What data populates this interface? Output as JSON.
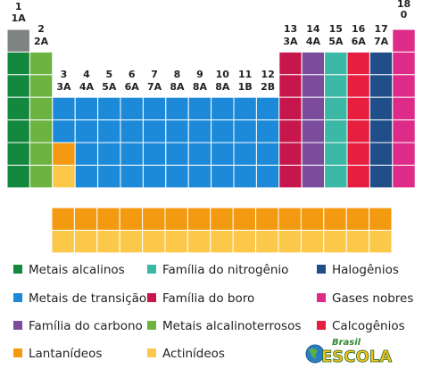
{
  "groups": [
    {
      "number": "1",
      "label": "1A"
    },
    {
      "number": "2",
      "label": "2A"
    },
    {
      "number": "3",
      "label": "3A"
    },
    {
      "number": "4",
      "label": "4A"
    },
    {
      "number": "5",
      "label": "5A"
    },
    {
      "number": "6",
      "label": "6A"
    },
    {
      "number": "7",
      "label": "7A"
    },
    {
      "number": "8",
      "label": "8A"
    },
    {
      "number": "9",
      "label": "8A"
    },
    {
      "number": "10",
      "label": "8A"
    },
    {
      "number": "11",
      "label": "1B"
    },
    {
      "number": "12",
      "label": "2B"
    },
    {
      "number": "13",
      "label": "3A"
    },
    {
      "number": "14",
      "label": "4A"
    },
    {
      "number": "15",
      "label": "5A"
    },
    {
      "number": "16",
      "label": "6A"
    },
    {
      "number": "17",
      "label": "7A"
    },
    {
      "number": "18",
      "label": "0"
    }
  ],
  "legend": [
    {
      "label": "Metais alcalinos",
      "color": "#13883f"
    },
    {
      "label": "Metais de transição",
      "color": "#1c8ad8"
    },
    {
      "label": "Família do carbono",
      "color": "#7b4b9c"
    },
    {
      "label": "Lantanídeos",
      "color": "#f39a10"
    },
    {
      "label": "Família do nitrogênio",
      "color": "#3bb8a6"
    },
    {
      "label": "Família do boro",
      "color": "#c6164c"
    },
    {
      "label": "Metais alcalinoterrosos",
      "color": "#6cb33f"
    },
    {
      "label": "Actinídeos",
      "color": "#fcc84a"
    },
    {
      "label": "Halogênios",
      "color": "#1f4e88"
    },
    {
      "label": "Gases nobres",
      "color": "#de2a89"
    },
    {
      "label": "Calcogênios",
      "color": "#e61f3f"
    }
  ],
  "logo": {
    "line1": "Brasil",
    "line2": "ESCOLA"
  }
}
